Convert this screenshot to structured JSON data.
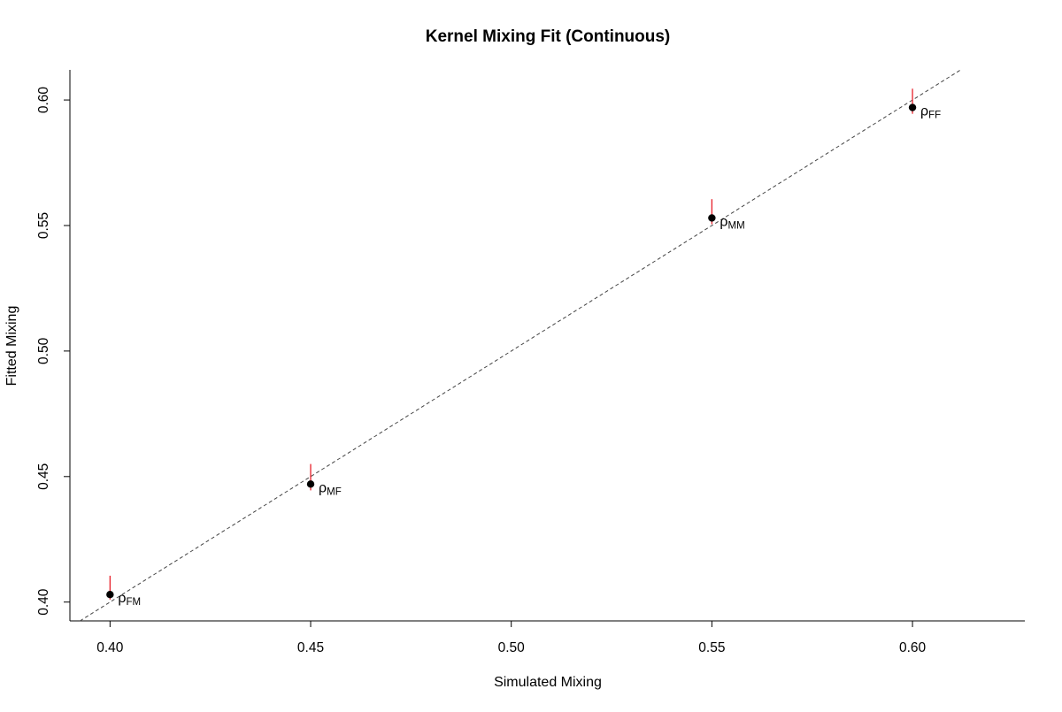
{
  "chart_data": {
    "type": "scatter",
    "title": "Kernel Mixing Fit (Continuous)",
    "xlabel": "Simulated Mixing",
    "ylabel": "Fitted Mixing",
    "xlim": [
      0.39,
      0.628
    ],
    "ylim": [
      0.3925,
      0.612
    ],
    "x_ticks": [
      "0.40",
      "0.45",
      "0.50",
      "0.55",
      "0.60"
    ],
    "y_ticks": [
      "0.40",
      "0.45",
      "0.50",
      "0.55",
      "0.60"
    ],
    "grid": false,
    "reference_line": {
      "type": "identity",
      "style": "dashed",
      "color": "#444444"
    },
    "points": [
      {
        "label_main": "ρ",
        "label_sub": "FM",
        "x": 0.4,
        "y": 0.403,
        "err_low": 0.401,
        "err_high": 0.4105
      },
      {
        "label_main": "ρ",
        "label_sub": "MF",
        "x": 0.45,
        "y": 0.447,
        "err_low": 0.4445,
        "err_high": 0.455
      },
      {
        "label_main": "ρ",
        "label_sub": "MM",
        "x": 0.55,
        "y": 0.553,
        "err_low": 0.5505,
        "err_high": 0.5605
      },
      {
        "label_main": "ρ",
        "label_sub": "FF",
        "x": 0.6,
        "y": 0.597,
        "err_low": 0.5945,
        "err_high": 0.6045
      }
    ],
    "colors": {
      "point": "#000000",
      "error_bar": "#e8202a",
      "reference_line": "#444444",
      "axis": "#000000"
    }
  }
}
